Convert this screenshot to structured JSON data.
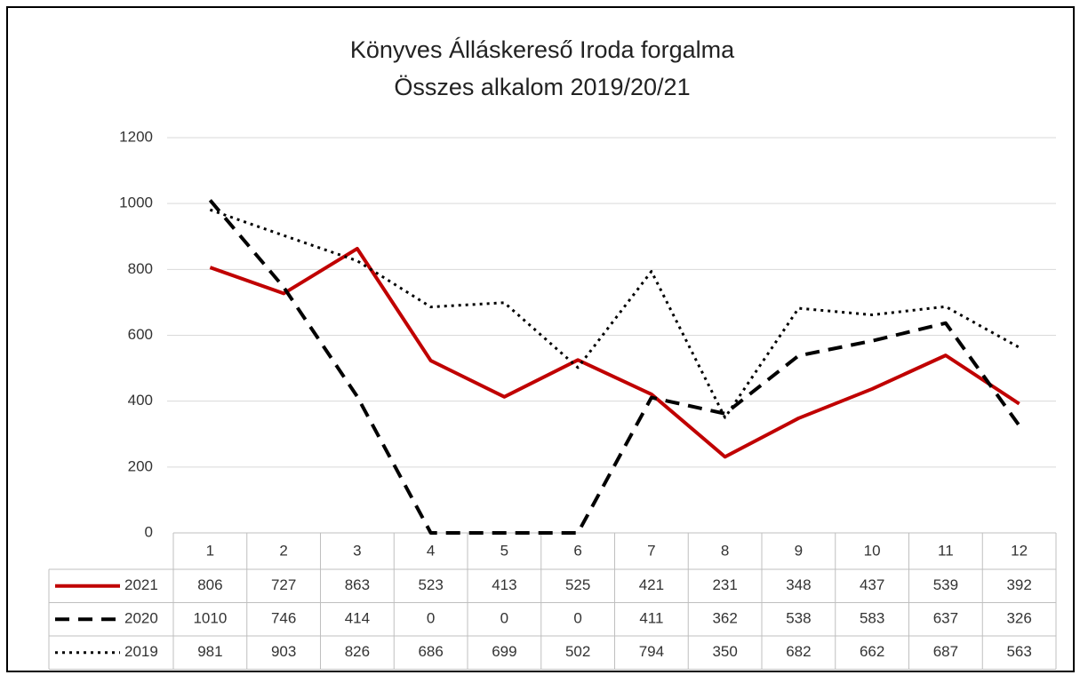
{
  "chart_data": {
    "type": "line",
    "title": [
      "Könyves Álláskereső Iroda forgalma",
      "Összes alkalom 2019/20/21"
    ],
    "categories": [
      "1",
      "2",
      "3",
      "4",
      "5",
      "6",
      "7",
      "8",
      "9",
      "10",
      "11",
      "12"
    ],
    "series": [
      {
        "name": "2021",
        "color": "#c00000",
        "dash": "solid",
        "values": [
          806,
          727,
          863,
          523,
          413,
          525,
          421,
          231,
          348,
          437,
          539,
          392
        ]
      },
      {
        "name": "2020",
        "color": "#000000",
        "dash": "dashed",
        "values": [
          1010,
          746,
          414,
          0,
          0,
          0,
          411,
          362,
          538,
          583,
          637,
          326
        ]
      },
      {
        "name": "2019",
        "color": "#000000",
        "dash": "dotted",
        "values": [
          981,
          903,
          826,
          686,
          699,
          502,
          794,
          350,
          682,
          662,
          687,
          563
        ]
      }
    ],
    "ylim": [
      0,
      1200
    ],
    "yticks": [
      0,
      200,
      400,
      600,
      800,
      1000,
      1200
    ],
    "grid": true,
    "data_table": true
  }
}
